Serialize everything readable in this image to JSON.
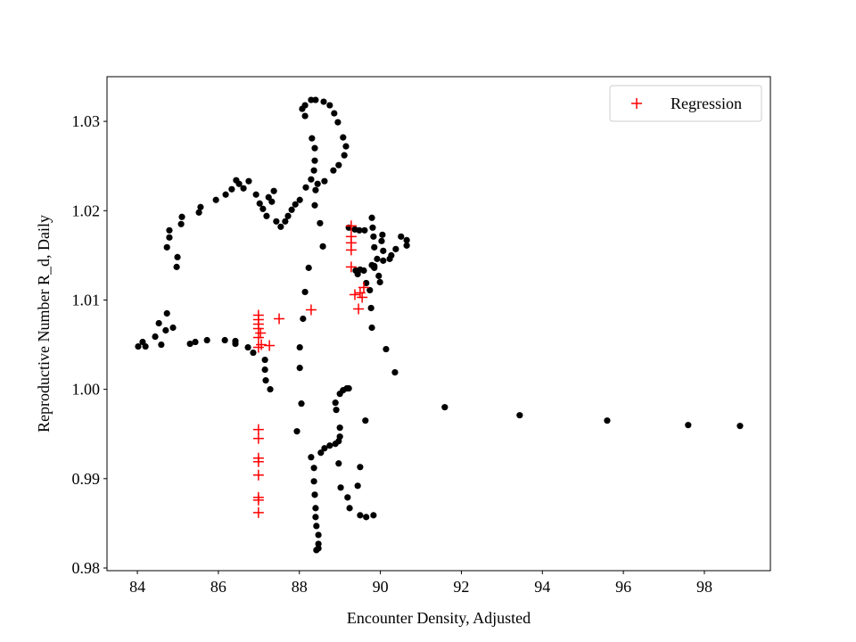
{
  "chart_data": {
    "type": "scatter",
    "xlabel": "Encounter Density, Adjusted",
    "ylabel": "Reproductive Number R_d, Daily",
    "xlim": [
      83.25,
      99.63
    ],
    "ylim": [
      0.9797,
      1.035
    ],
    "xticks": [
      84,
      86,
      88,
      90,
      92,
      94,
      96,
      98
    ],
    "yticks": [
      0.98,
      0.99,
      {
        "value": 1,
        "label": "1.00"
      },
      1.01,
      1.02,
      1.03
    ],
    "legend": "upper right",
    "series": [
      {
        "color": "#000000",
        "marker": "dot",
        "x": [
          84.02,
          84.13,
          84.2,
          84.44,
          84.53,
          84.59,
          84.7,
          84.73,
          84.73,
          84.79,
          84.79,
          84.88,
          84.97,
          84.99,
          85.08,
          85.1,
          85.3,
          85.43,
          85.72,
          86.16,
          86.42,
          86.42,
          86.73,
          86.86,
          87.15,
          87.15,
          87.17,
          87.28,
          85.52,
          85.56,
          85.94,
          86.18,
          86.33,
          86.44,
          86.51,
          86.62,
          86.75,
          86.93,
          87.02,
          87.1,
          87.19,
          87.24,
          87.37,
          87.32,
          87.43,
          87.54,
          87.65,
          87.72,
          87.81,
          87.9,
          88.01,
          88.16,
          88.29,
          88.36,
          88.38,
          88.38,
          88.31,
          88.14,
          88.07,
          88.14,
          88.29,
          88.4,
          88.6,
          88.75,
          88.86,
          88.95,
          89.08,
          89.15,
          89.11,
          88.97,
          88.84,
          88.62,
          88.45,
          88.4,
          88.38,
          88.51,
          88.58,
          88.23,
          88.14,
          88.09,
          88.01,
          88.01,
          88.05,
          87.94,
          88.29,
          88.36,
          88.36,
          88.38,
          88.4,
          88.4,
          88.42,
          88.47,
          88.47,
          88.47,
          88.42,
          88.53,
          88.62,
          88.75,
          88.89,
          88.97,
          89.0,
          89.0,
          88.91,
          88.89,
          89.0,
          89.08,
          89.17,
          89.22,
          88.97,
          89.02,
          89.19,
          89.24,
          89.44,
          89.5,
          89.5,
          89.65,
          89.83,
          89.63,
          89.22,
          89.37,
          89.48,
          89.61,
          89.79,
          89.81,
          89.83,
          89.85,
          89.92,
          89.85,
          89.96,
          89.99,
          89.74,
          89.77,
          89.79,
          89.65,
          89.44,
          89.39,
          89.5,
          89.59,
          89.85,
          90.05,
          90.03,
          90.07,
          90.07,
          90.23,
          90.27,
          90.38,
          90.51,
          90.65,
          90.65,
          89.79,
          90.14,
          90.36,
          91.59,
          93.44,
          95.6,
          97.6,
          98.88
        ],
        "values": [
          1.0048,
          1.0053,
          1.0048,
          1.0059,
          1.0074,
          1.005,
          1.0066,
          1.0085,
          1.0159,
          1.0178,
          1.017,
          1.0069,
          1.0137,
          1.0148,
          1.0185,
          1.0193,
          1.0051,
          1.0053,
          1.0055,
          1.0055,
          1.0054,
          1.0051,
          1.0047,
          1.0041,
          1.0033,
          1.0022,
          1.001,
          1.0,
          1.0198,
          1.0204,
          1.0212,
          1.0218,
          1.0224,
          1.0234,
          1.023,
          1.0225,
          1.0233,
          1.0218,
          1.0208,
          1.0202,
          1.0194,
          1.0215,
          1.0222,
          1.021,
          1.0188,
          1.0182,
          1.0188,
          1.0194,
          1.0201,
          1.0207,
          1.0212,
          1.0226,
          1.0235,
          1.0245,
          1.0256,
          1.027,
          1.0281,
          1.0306,
          1.0314,
          1.0318,
          1.0324,
          1.0324,
          1.0322,
          1.0318,
          1.0309,
          1.0299,
          1.0282,
          1.0272,
          1.0262,
          1.0251,
          1.0245,
          1.0233,
          1.023,
          1.0223,
          1.0206,
          1.0186,
          1.016,
          1.0136,
          1.0109,
          1.0079,
          1.0047,
          1.0024,
          0.9984,
          0.9953,
          0.9924,
          0.9912,
          0.9897,
          0.9882,
          0.9867,
          0.9857,
          0.9847,
          0.9837,
          0.9827,
          0.9822,
          0.982,
          0.9929,
          0.9934,
          0.9937,
          0.9939,
          0.9942,
          0.9947,
          0.9957,
          0.9977,
          0.9985,
          0.9995,
          0.9999,
          1.0001,
          1.0001,
          0.9917,
          0.989,
          0.9879,
          0.9867,
          0.9892,
          0.9913,
          0.9859,
          0.9857,
          0.9859,
          0.9965,
          1.0181,
          1.0179,
          1.0178,
          1.0178,
          1.0192,
          1.0181,
          1.0171,
          1.0159,
          1.0146,
          1.0138,
          1.0127,
          1.012,
          1.0111,
          1.0091,
          1.0069,
          1.0119,
          1.0129,
          1.0133,
          1.0134,
          1.0133,
          1.0136,
          1.0173,
          1.0166,
          1.0155,
          1.0144,
          1.0146,
          1.015,
          1.0157,
          1.0171,
          1.0167,
          1.0161,
          1.0139,
          1.0045,
          1.0019,
          0.998,
          0.9971,
          0.9965,
          0.996,
          0.9959
        ]
      },
      {
        "name": "Regression",
        "color": "#ff0000",
        "marker": "plus",
        "x": [
          86.99,
          86.99,
          86.99,
          86.99,
          87.04,
          86.99,
          87.06,
          87.26,
          86.99,
          87.5,
          88.29,
          86.99,
          86.99,
          86.99,
          86.99,
          86.99,
          86.99,
          86.99,
          86.99,
          89.28,
          89.28,
          89.28,
          89.28,
          89.28,
          89.37,
          89.46,
          89.5,
          89.59,
          89.55
        ],
        "values": [
          1.0083,
          1.0078,
          1.0073,
          1.0068,
          1.0063,
          1.0058,
          1.005,
          1.0049,
          1.0047,
          1.0079,
          1.0089,
          0.9955,
          0.9945,
          0.9923,
          0.9919,
          0.9904,
          0.9879,
          0.9876,
          0.9862,
          1.0183,
          1.0171,
          1.0164,
          1.0156,
          1.0137,
          1.0106,
          1.009,
          1.0108,
          1.0114,
          1.0103
        ]
      }
    ]
  }
}
